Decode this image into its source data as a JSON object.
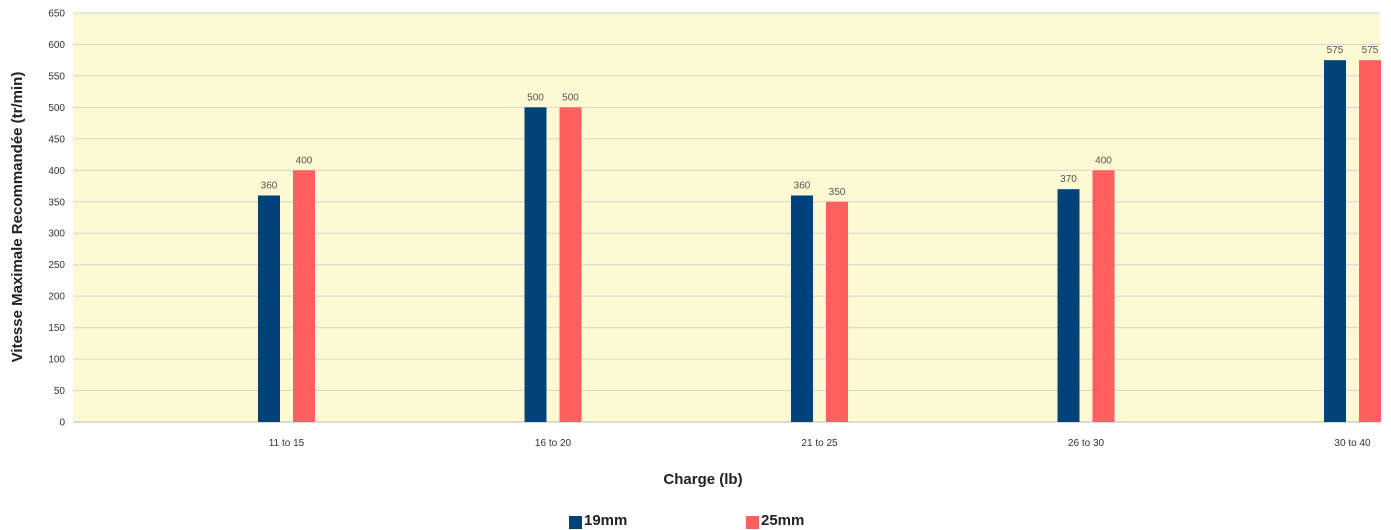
{
  "chart_data": {
    "type": "bar",
    "categories": [
      "11 to 15",
      "16 to 20",
      "21 to 25",
      "26 to 30",
      "30 to 40"
    ],
    "series": [
      {
        "name": "19mm",
        "color": "#00427a",
        "values": [
          360,
          500,
          360,
          370,
          575
        ]
      },
      {
        "name": "25mm",
        "color": "#ff5f5f",
        "values": [
          400,
          500,
          350,
          400,
          575
        ]
      }
    ],
    "data_labels": [
      [
        "360",
        "500",
        "360",
        "370",
        "575"
      ],
      [
        "400",
        "500",
        "350",
        "400",
        "575"
      ]
    ],
    "xlabel": "Charge (lb)",
    "ylabel": "Vitesse Maximale Recommandée (tr/min)",
    "ylim": [
      0,
      650
    ],
    "yticks": [
      "0",
      "50",
      "100",
      "150",
      "200",
      "250",
      "300",
      "350",
      "400",
      "450",
      "500",
      "550",
      "600",
      "650"
    ],
    "grid": true,
    "plot_background": "#fdf9d2",
    "legend": "bottom"
  }
}
